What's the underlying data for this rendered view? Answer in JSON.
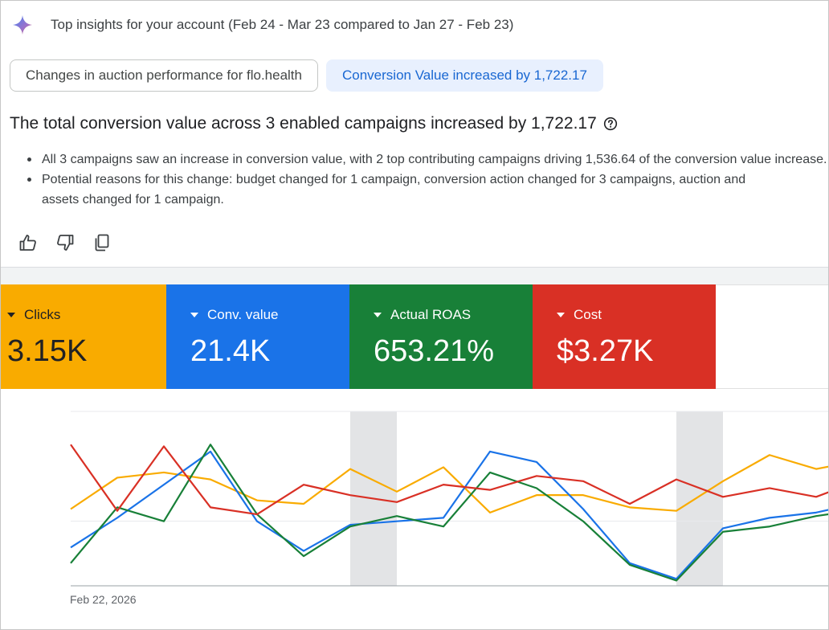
{
  "insight": {
    "title": "Top insights for your account (Feb 24 - Mar 23 compared to Jan 27 - Feb 23)",
    "chips": [
      {
        "label": "Changes in auction performance for flo.health",
        "selected": false
      },
      {
        "label": "Conversion Value increased by 1,722.17",
        "selected": true
      }
    ],
    "headline": "The total conversion value across 3 enabled campaigns increased by 1,722.17",
    "bullets": [
      "All 3 campaigns saw an increase in conversion value, with 2 top contributing campaigns driving 1,536.64 of the conversion value increase.",
      "Potential reasons for this change: budget changed for 1 campaign, conversion action changed for 3 campaigns, auction and",
      "assets changed for 1 campaign."
    ],
    "feedback_icons": [
      "thumbs-up-icon",
      "thumbs-down-icon",
      "copy-icon"
    ]
  },
  "metrics": [
    {
      "label": "Clicks",
      "value": "3.15K",
      "color": "#f9ab00"
    },
    {
      "label": "Conv. value",
      "value": "21.4K",
      "color": "#1a73e8"
    },
    {
      "label": "Actual ROAS",
      "value": "653.21%",
      "color": "#188038"
    },
    {
      "label": "Cost",
      "value": "$3.27K",
      "color": "#d93025"
    }
  ],
  "chart_data": {
    "type": "line",
    "x_start_label": "Feb 22, 2026",
    "x": [
      0,
      1,
      2,
      3,
      4,
      5,
      6,
      7,
      8,
      9,
      10,
      11,
      12,
      13,
      14,
      15,
      16,
      17
    ],
    "weekend_bands": [
      [
        6,
        7
      ],
      [
        13,
        14
      ]
    ],
    "series": [
      {
        "metric": "Clicks",
        "color": "#f9ab00",
        "values": [
          0.44,
          0.62,
          0.65,
          0.61,
          0.49,
          0.47,
          0.67,
          0.54,
          0.68,
          0.42,
          0.52,
          0.52,
          0.45,
          0.43,
          0.6,
          0.75,
          0.67,
          0.72
        ]
      },
      {
        "metric": "Conv. value",
        "color": "#1a73e8",
        "values": [
          0.22,
          0.39,
          0.58,
          0.77,
          0.37,
          0.2,
          0.35,
          0.37,
          0.39,
          0.77,
          0.71,
          0.44,
          0.13,
          0.04,
          0.33,
          0.39,
          0.42,
          0.48
        ]
      },
      {
        "metric": "Actual ROAS",
        "color": "#188038",
        "values": [
          0.13,
          0.45,
          0.37,
          0.81,
          0.41,
          0.17,
          0.34,
          0.4,
          0.34,
          0.65,
          0.56,
          0.37,
          0.12,
          0.03,
          0.31,
          0.34,
          0.4,
          0.44
        ]
      },
      {
        "metric": "Cost",
        "color": "#d93025",
        "values": [
          0.81,
          0.43,
          0.8,
          0.45,
          0.41,
          0.58,
          0.52,
          0.48,
          0.58,
          0.55,
          0.63,
          0.6,
          0.47,
          0.61,
          0.51,
          0.56,
          0.51,
          0.61
        ]
      }
    ]
  }
}
